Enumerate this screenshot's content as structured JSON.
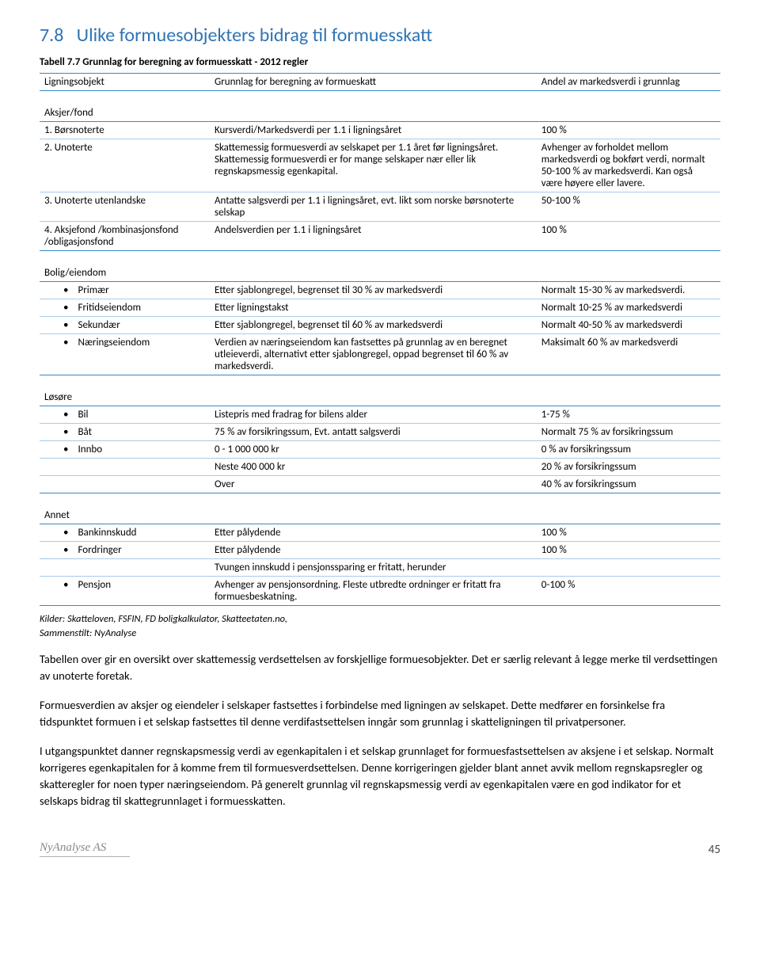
{
  "sectionNumber": "7.8",
  "sectionTitle": "Ulike formuesobjekters bidrag til formuesskatt",
  "tableCaption": "Tabell 7.7  Grunnlag for beregning av formuesskatt - 2012 regler",
  "headers": {
    "c1": "Ligningsobjekt",
    "c2": "Grunnlag for beregning av formueskatt",
    "c3": "Andel av markedsverdi i grunnlag"
  },
  "sections": [
    {
      "title": "Aksjer/fond",
      "rows": [
        {
          "c1": "1.    Børsnoterte",
          "c2": "Kursverdi/Markedsverdi per 1.1 i ligningsåret",
          "c3": "100 %",
          "type": "num"
        },
        {
          "c1": "2.    Unoterte",
          "c2": "Skattemessig formuesverdi av selskapet per 1.1 året før ligningsåret. Skattemessig formuesverdi er for mange selskaper nær eller lik regnskapsmessig egenkapital.",
          "c3": "Avhenger av forholdet mellom markedsverdi og bokført verdi, normalt 50-100 % av markedsverdi. Kan også være høyere eller lavere.",
          "type": "num"
        },
        {
          "c1": "3.    Unoterte utenlandske",
          "c2": "Antatte salgsverdi per 1.1 i ligningsåret, evt. likt som norske børsnoterte selskap",
          "c3": "50-100 %",
          "type": "num"
        },
        {
          "c1": "4.    Aksjefond /kombinasjonsfond /obligasjonsfond",
          "c2": "Andelsverdien per 1.1 i ligningsåret",
          "c3": "100 %",
          "type": "num"
        }
      ]
    },
    {
      "title": "Bolig/eiendom",
      "rows": [
        {
          "c1": "Primær",
          "c2": "Etter sjablongregel, begrenset til 30 % av markedsverdi",
          "c3": "Normalt 15-30 % av markedsverdi.",
          "type": "bullet"
        },
        {
          "c1": "Fritidseiendom",
          "c2": "Etter ligningstakst",
          "c3": "Normalt 10-25 % av markedsverdi",
          "type": "bullet"
        },
        {
          "c1": "Sekundær",
          "c2": "Etter sjablongregel, begrenset til 60 % av markedsverdi",
          "c3": "Normalt 40-50 % av markedsverdi",
          "type": "bullet"
        },
        {
          "c1": "Næringseiendom",
          "c2": "Verdien av næringseiendom kan fastsettes på grunnlag av en beregnet utleieverdi, alternativt etter sjablongregel, oppad begrenset til 60 % av markedsverdi.",
          "c3": "Maksimalt 60 % av markedsverdi",
          "type": "bullet"
        }
      ]
    },
    {
      "title": "Løsøre",
      "rows": [
        {
          "c1": "Bil",
          "c2": "Listepris med fradrag for bilens alder",
          "c3": "1-75 %",
          "type": "bullet"
        },
        {
          "c1": "Båt",
          "c2": "75 % av forsikringssum, Evt. antatt salgsverdi",
          "c3": "Normalt 75 % av forsikringssum",
          "type": "bullet"
        },
        {
          "c1": "Innbo",
          "c2": "0 - 1 000 000 kr",
          "c3": "0 % av forsikringssum",
          "type": "bullet"
        },
        {
          "c1": "",
          "c2": "Neste 400 000 kr",
          "c3": "20 % av forsikringssum",
          "type": "plain"
        },
        {
          "c1": "",
          "c2": "Over",
          "c3": "40 % av forsikringssum",
          "type": "plain"
        }
      ]
    },
    {
      "title": "Annet",
      "rows": [
        {
          "c1": "Bankinnskudd",
          "c2": "Etter pålydende",
          "c3": "100 %",
          "type": "bullet"
        },
        {
          "c1": "Fordringer",
          "c2": "Etter pålydende",
          "c3": "100 %",
          "type": "bullet"
        },
        {
          "c1": "",
          "c2": "Tvungen innskudd i pensjonssparing er fritatt, herunder",
          "c3": "",
          "type": "plain"
        },
        {
          "c1": "Pensjon",
          "c2": "Avhenger av pensjonsordning. Fleste utbredte ordninger er fritatt fra formuesbeskatning.",
          "c3": "0-100 %",
          "type": "bullet"
        }
      ]
    }
  ],
  "sourceLine1": "Kilder: Skatteloven, FSFIN, FD boligkalkulator, Skatteetaten.no,",
  "sourceLine2": "Sammenstilt: NyAnalyse",
  "paragraphs": [
    "Tabellen over gir en oversikt over skattemessig verdsettelsen av forskjellige formuesobjekter. Det er særlig relevant å legge merke til verdsettingen av unoterte foretak.",
    "Formuesverdien av aksjer og eiendeler i selskaper fastsettes i forbindelse med ligningen av selskapet. Dette medfører en forsinkelse fra tidspunktet formuen i et selskap fastsettes til denne verdifastsettelsen inngår som grunnlag i skatteligningen til privatpersoner.",
    "I utgangspunktet danner regnskapsmessig verdi av egenkapitalen i et selskap grunnlaget for formuesfastsettelsen av aksjene i et selskap. Normalt korrigeres egenkapitalen for å komme frem til formuesverdsettelsen. Denne korrigeringen gjelder blant annet avvik mellom regnskapsregler og skatteregler for noen typer næringseiendom. På generelt grunnlag vil regnskapsmessig verdi av egenkapitalen være en god indikator for et selskaps bidrag til skattegrunnlaget i formuesskatten."
  ],
  "footerLeft": "NyAnalyse AS",
  "footerRight": "45"
}
